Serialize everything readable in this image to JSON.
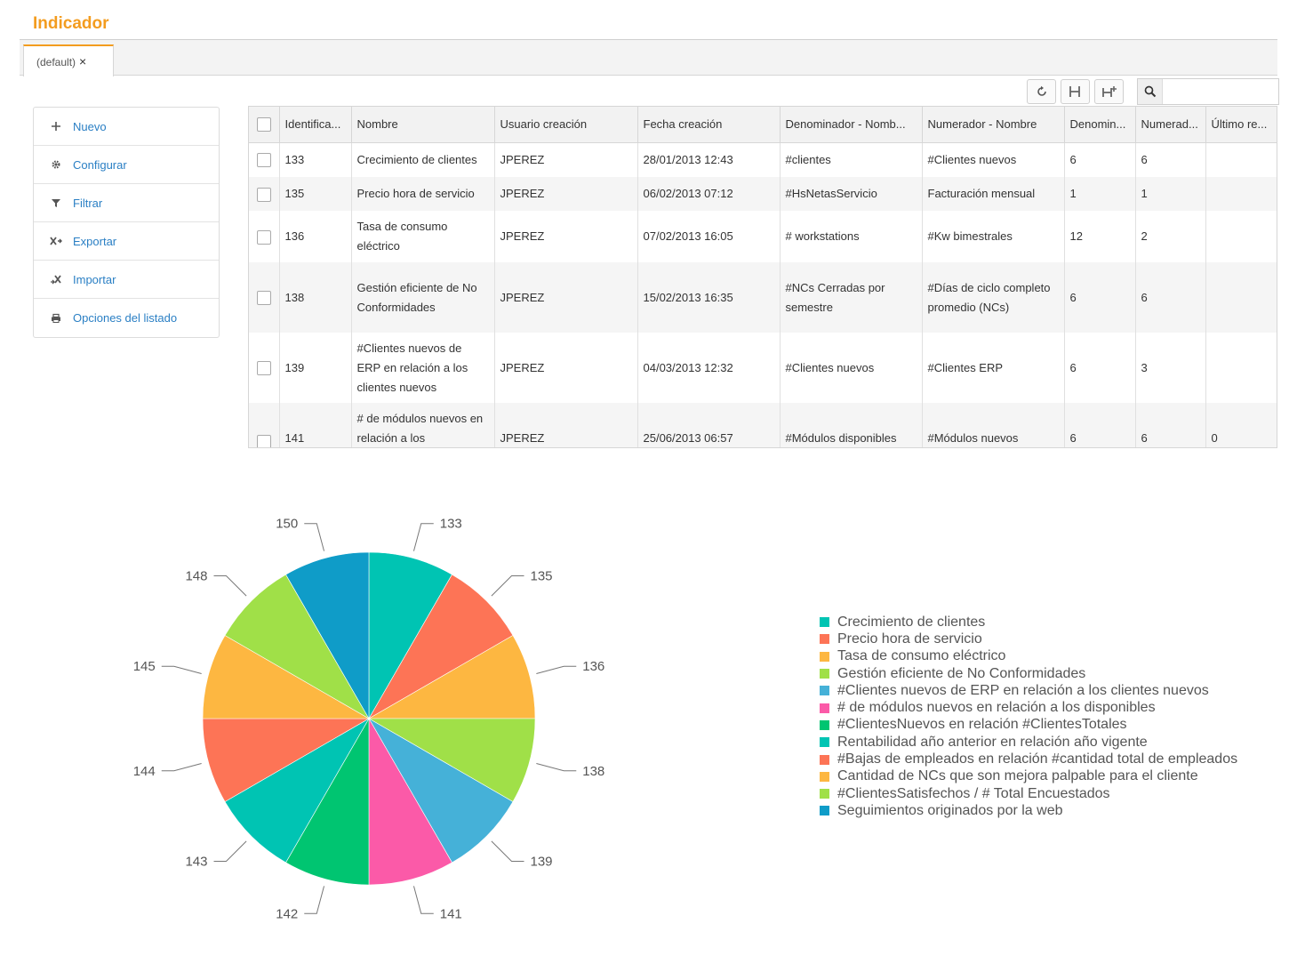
{
  "page": {
    "title": "Indicador"
  },
  "tabs": [
    {
      "label": "(default)",
      "close": "×"
    }
  ],
  "toolbar": {
    "search_placeholder": ""
  },
  "side_menu": [
    {
      "label": "Nuevo",
      "icon": "plus-icon"
    },
    {
      "label": "Configurar",
      "icon": "gear-icon"
    },
    {
      "label": "Filtrar",
      "icon": "filter-icon"
    },
    {
      "label": "Exportar",
      "icon": "export-icon"
    },
    {
      "label": "Importar",
      "icon": "import-icon"
    },
    {
      "label": "Opciones del listado",
      "icon": "print-icon"
    }
  ],
  "table": {
    "columns": [
      "Identifica...",
      "Nombre",
      "Usuario creación",
      "Fecha creación",
      "Denominador - Nomb...",
      "Numerador - Nombre",
      "Denomin...",
      "Numerad...",
      "Último re..."
    ],
    "rows": [
      {
        "id": "133",
        "nombre": "Crecimiento de clientes",
        "usuario": "JPEREZ",
        "fecha": "28/01/2013 12:43",
        "denominador_nombre": "#clientes",
        "numerador_nombre": "#Clientes nuevos",
        "denominador": "6",
        "numerador": "6",
        "ultimo": ""
      },
      {
        "id": "135",
        "nombre": "Precio hora de servicio",
        "usuario": "JPEREZ",
        "fecha": "06/02/2013 07:12",
        "denominador_nombre": "#HsNetasServicio",
        "numerador_nombre": "Facturación mensual",
        "denominador": "1",
        "numerador": "1",
        "ultimo": ""
      },
      {
        "id": "136",
        "nombre": "Tasa de consumo eléctrico",
        "usuario": "JPEREZ",
        "fecha": "07/02/2013 16:05",
        "denominador_nombre": "# workstations",
        "numerador_nombre": "#Kw bimestrales",
        "denominador": "12",
        "numerador": "2",
        "ultimo": ""
      },
      {
        "id": "138",
        "nombre": "Gestión eficiente de No Conformidades",
        "usuario": "JPEREZ",
        "fecha": "15/02/2013 16:35",
        "denominador_nombre": "#NCs Cerradas por semestre",
        "numerador_nombre": "#Días de ciclo completo promedio (NCs)",
        "denominador": "6",
        "numerador": "6",
        "ultimo": ""
      },
      {
        "id": "139",
        "nombre": "#Clientes nuevos de ERP en relación a los clientes nuevos",
        "usuario": "JPEREZ",
        "fecha": "04/03/2013 12:32",
        "denominador_nombre": "#Clientes nuevos",
        "numerador_nombre": "#Clientes ERP",
        "denominador": "6",
        "numerador": "3",
        "ultimo": ""
      },
      {
        "id": "141",
        "nombre": "# de módulos nuevos en relación a los",
        "usuario": "JPEREZ",
        "fecha": "25/06/2013 06:57",
        "denominador_nombre": "#Módulos disponibles",
        "numerador_nombre": "#Módulos nuevos",
        "denominador": "6",
        "numerador": "6",
        "ultimo": "0"
      }
    ]
  },
  "chart_data": {
    "type": "pie",
    "categories": [
      "133",
      "135",
      "136",
      "138",
      "139",
      "141",
      "142",
      "143",
      "144",
      "145",
      "148",
      "150"
    ],
    "values": [
      1,
      1,
      1,
      1,
      1,
      1,
      1,
      1,
      1,
      1,
      1,
      1
    ],
    "colors": [
      "#00c4b3",
      "#fd7456",
      "#fdb741",
      "#a0e048",
      "#45b1d8",
      "#fb5aa8",
      "#00c571",
      "#00c4b3",
      "#fd7456",
      "#fdb741",
      "#a0e048",
      "#0f9cc8"
    ],
    "legend": [
      "Crecimiento de clientes",
      "Precio hora de servicio",
      "Tasa de consumo eléctrico",
      "Gestión eficiente de No Conformidades",
      "#Clientes nuevos de ERP en relación a los clientes nuevos",
      "# de módulos nuevos en relación a los disponibles",
      "#ClientesNuevos en relación #ClientesTotales",
      "Rentabilidad año anterior en relación año vigente",
      "#Bajas de empleados en relación #cantidad total de empleados",
      "Cantidad de NCs que son mejora palpable para el cliente",
      "#ClientesSatisfechos / # Total Encuestados",
      "Seguimientos originados por la web"
    ],
    "legend_position": "right"
  }
}
